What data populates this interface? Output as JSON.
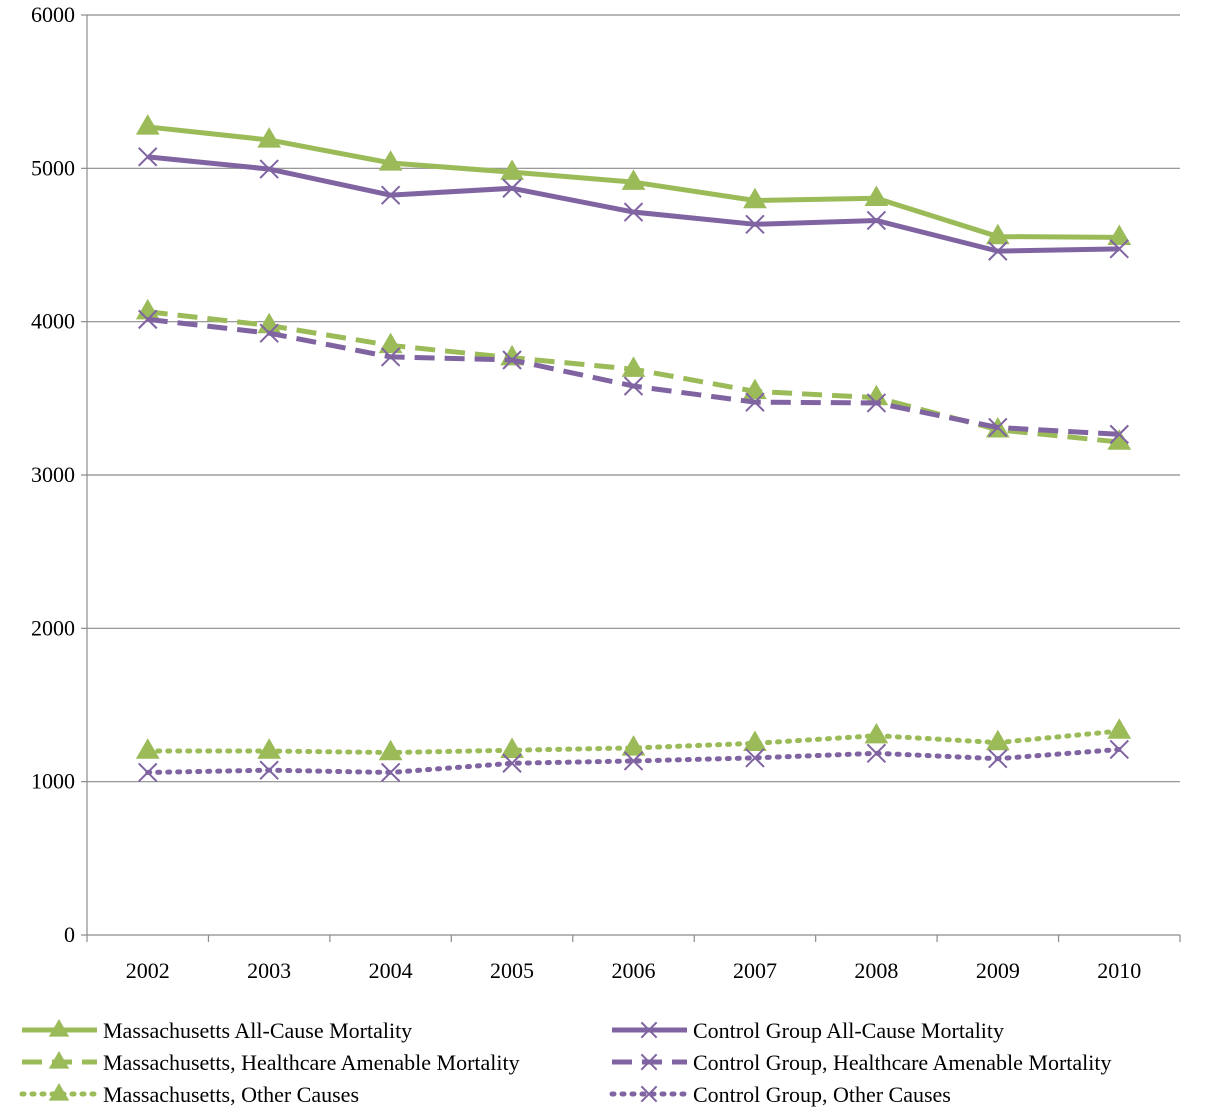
{
  "chart_data": {
    "type": "line",
    "title": "",
    "xlabel": "",
    "ylabel": "",
    "categories": [
      "2002",
      "2003",
      "2004",
      "2005",
      "2006",
      "2007",
      "2008",
      "2009",
      "2010"
    ],
    "ylim": [
      0,
      6000
    ],
    "yticks": [
      0,
      1000,
      2000,
      3000,
      4000,
      5000,
      6000
    ],
    "grid": "horizontal",
    "legend_position": "bottom",
    "series": [
      {
        "name": "Massachusetts All-Cause Mortality",
        "color": "#9bbb59",
        "dash": "solid",
        "marker": "triangle",
        "values": [
          5270,
          5185,
          5035,
          4975,
          4910,
          4790,
          4805,
          4555,
          4550
        ]
      },
      {
        "name": "Control Group All-Cause Mortality",
        "color": "#8064a2",
        "dash": "solid",
        "marker": "x",
        "values": [
          5075,
          4995,
          4825,
          4870,
          4715,
          4635,
          4660,
          4460,
          4475
        ]
      },
      {
        "name": "Massachusetts, Healthcare Amenable Mortality",
        "color": "#9bbb59",
        "dash": "dashed",
        "marker": "triangle",
        "values": [
          4065,
          3975,
          3845,
          3765,
          3690,
          3545,
          3505,
          3295,
          3215
        ]
      },
      {
        "name": "Control Group, Healthcare Amenable Mortality",
        "color": "#8064a2",
        "dash": "dashed",
        "marker": "x",
        "values": [
          4015,
          3925,
          3770,
          3750,
          3580,
          3475,
          3470,
          3310,
          3265
        ]
      },
      {
        "name": "Massachusetts, Other Causes",
        "color": "#9bbb59",
        "dash": "dotted",
        "marker": "triangle",
        "values": [
          1200,
          1200,
          1190,
          1205,
          1220,
          1250,
          1300,
          1255,
          1330
        ]
      },
      {
        "name": "Control Group, Other Causes",
        "color": "#8064a2",
        "dash": "dotted",
        "marker": "x",
        "values": [
          1060,
          1075,
          1060,
          1120,
          1135,
          1155,
          1185,
          1150,
          1210
        ]
      }
    ]
  }
}
